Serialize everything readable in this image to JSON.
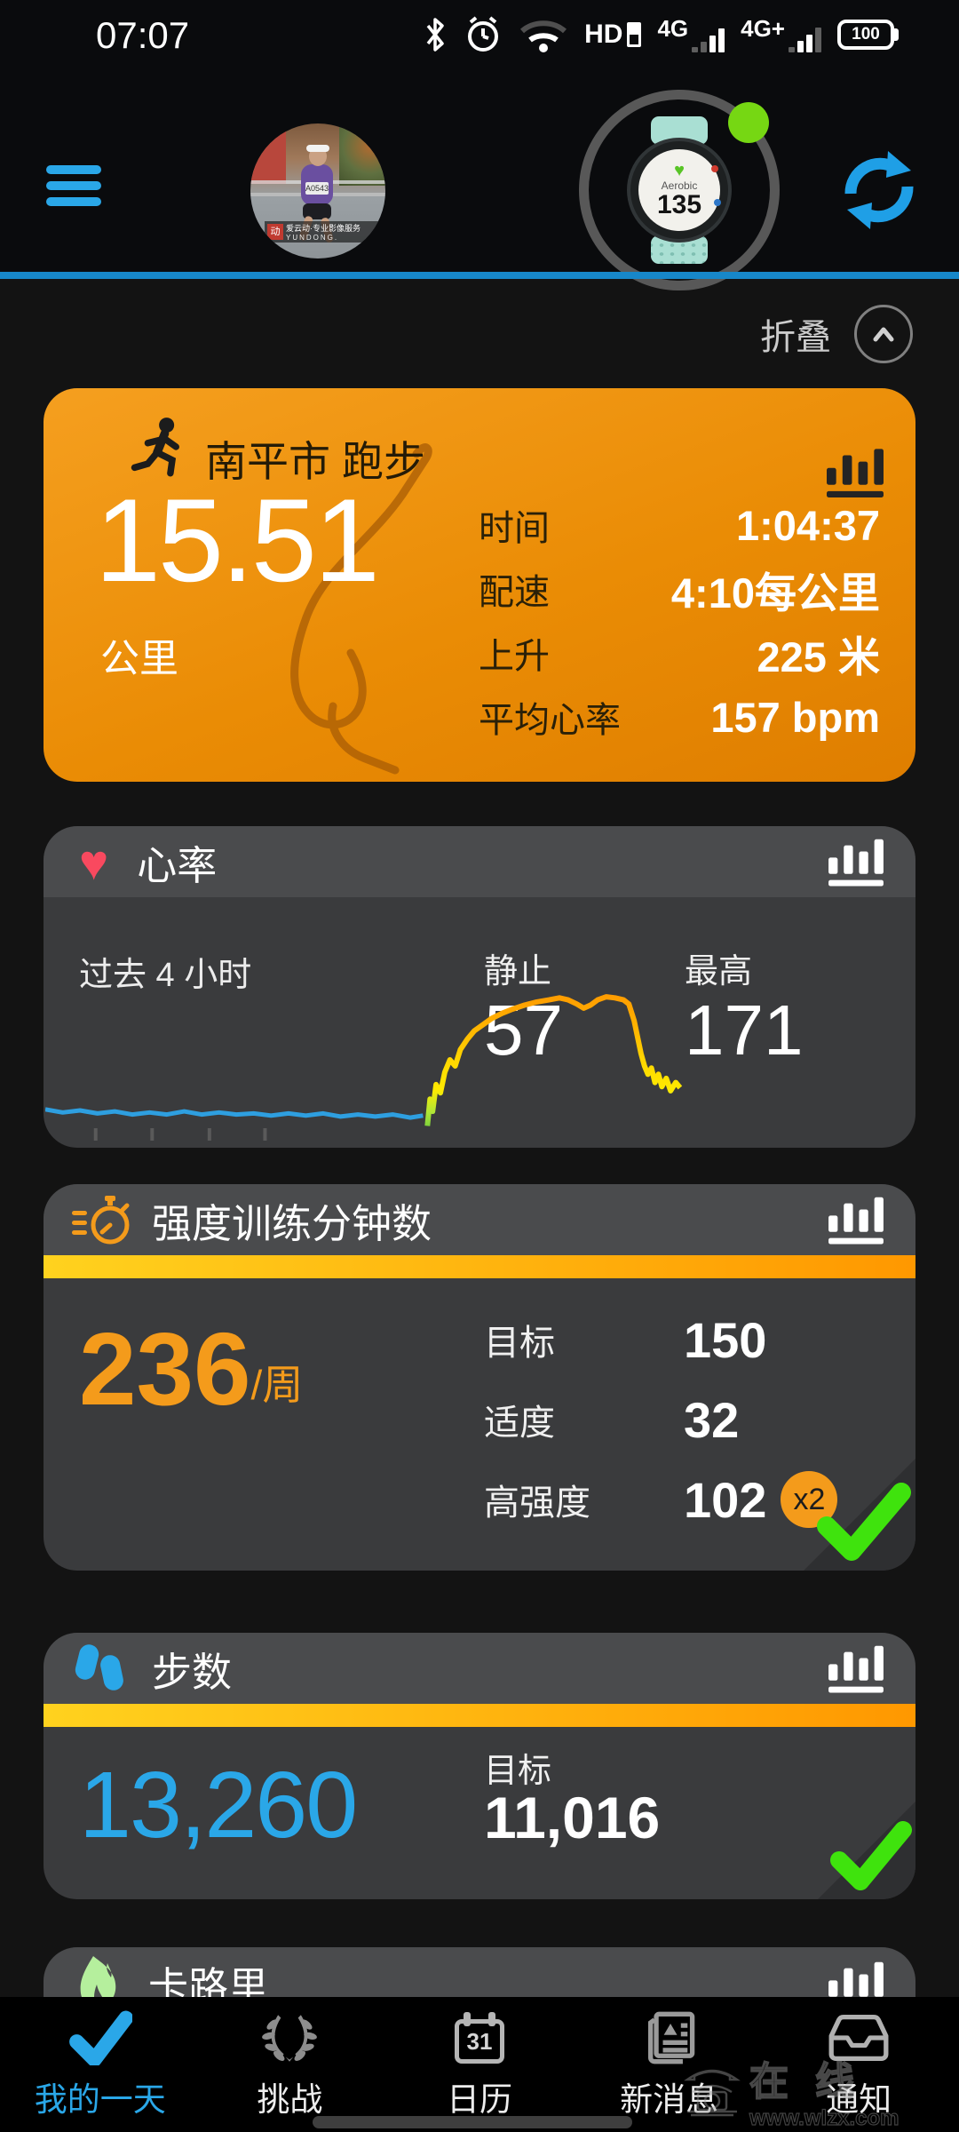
{
  "status_bar": {
    "time": "07:07",
    "battery_level": "100",
    "hd_label": "HD",
    "net1_label": "4G",
    "net2_label": "4G+"
  },
  "header": {
    "avatar_bib": "A0543",
    "avatar_watermark_brand": "爱云动·专业影像服务",
    "avatar_watermark_sub": "YUNDONG.",
    "watch_mode": "Aerobic",
    "watch_hr": "135"
  },
  "collapse": {
    "label": "折叠"
  },
  "cards": {
    "activity": {
      "title": "南平市 跑步",
      "distance": "15.51",
      "distance_unit": "公里",
      "stats": [
        {
          "label": "时间",
          "value": "1:04:37"
        },
        {
          "label": "配速",
          "value": "4:10每公里"
        },
        {
          "label": "上升",
          "value": "225 米"
        },
        {
          "label": "平均心率",
          "value": "157 bpm"
        }
      ]
    },
    "heart_rate": {
      "title": "心率",
      "period": "过去 4 小时",
      "resting_label": "静止",
      "resting_value": "57",
      "max_label": "最高",
      "max_value": "171",
      "chart": {
        "type": "line",
        "x_hours": 4,
        "y_range": [
          30,
          190
        ],
        "tick_positions": [
          0.058,
          0.123,
          0.189,
          0.253
        ],
        "colors": {
          "rest": "#2e9fe0",
          "zone_low": "#6ecb3c",
          "zone_mid": "#ffd600",
          "zone_high": "#ff8f00"
        },
        "rest_series": [
          [
            0,
            62
          ],
          [
            0.02,
            59
          ],
          [
            0.04,
            61
          ],
          [
            0.06,
            58
          ],
          [
            0.08,
            60
          ],
          [
            0.1,
            57
          ],
          [
            0.12,
            59
          ],
          [
            0.14,
            57
          ],
          [
            0.16,
            60
          ],
          [
            0.18,
            57
          ],
          [
            0.2,
            59
          ],
          [
            0.22,
            57
          ],
          [
            0.24,
            58
          ],
          [
            0.26,
            56
          ],
          [
            0.28,
            58
          ],
          [
            0.3,
            56
          ],
          [
            0.32,
            58
          ],
          [
            0.34,
            55
          ],
          [
            0.36,
            57
          ],
          [
            0.38,
            55
          ],
          [
            0.4,
            57
          ],
          [
            0.42,
            54
          ],
          [
            0.435,
            56
          ]
        ],
        "active_series": [
          [
            0.44,
            46
          ],
          [
            0.443,
            72
          ],
          [
            0.446,
            60
          ],
          [
            0.45,
            86
          ],
          [
            0.455,
            78
          ],
          [
            0.46,
            98
          ],
          [
            0.466,
            110
          ],
          [
            0.472,
            104
          ],
          [
            0.478,
            120
          ],
          [
            0.486,
            130
          ],
          [
            0.494,
            138
          ],
          [
            0.504,
            144
          ],
          [
            0.514,
            150
          ],
          [
            0.526,
            155
          ],
          [
            0.538,
            159
          ],
          [
            0.552,
            163
          ],
          [
            0.566,
            166
          ],
          [
            0.58,
            168
          ],
          [
            0.592,
            170
          ],
          [
            0.602,
            168
          ],
          [
            0.612,
            164
          ],
          [
            0.62,
            160
          ],
          [
            0.628,
            163
          ],
          [
            0.636,
            168
          ],
          [
            0.646,
            171
          ],
          [
            0.656,
            170
          ],
          [
            0.666,
            168
          ],
          [
            0.672,
            164
          ],
          [
            0.678,
            148
          ],
          [
            0.682,
            132
          ],
          [
            0.686,
            116
          ],
          [
            0.69,
            104
          ],
          [
            0.694,
            96
          ],
          [
            0.698,
            102
          ],
          [
            0.702,
            88
          ],
          [
            0.706,
            96
          ],
          [
            0.71,
            84
          ],
          [
            0.715,
            92
          ],
          [
            0.72,
            80
          ],
          [
            0.726,
            88
          ],
          [
            0.731,
            83
          ]
        ]
      }
    },
    "intensity": {
      "title": "强度训练分钟数",
      "value": "236",
      "unit": "/周",
      "rows": [
        {
          "label": "目标",
          "value": "150",
          "badge": ""
        },
        {
          "label": "适度",
          "value": "32",
          "badge": ""
        },
        {
          "label": "高强度",
          "value": "102",
          "badge": "x2"
        }
      ]
    },
    "steps": {
      "title": "步数",
      "value": "13,260",
      "goal_label": "目标",
      "goal_value": "11,016"
    },
    "calories": {
      "title": "卡路里"
    }
  },
  "nav": {
    "items": [
      {
        "label": "我的一天",
        "active": true
      },
      {
        "label": "挑战",
        "active": false
      },
      {
        "label": "日历",
        "active": false,
        "day": "31"
      },
      {
        "label": "新消息",
        "active": false
      },
      {
        "label": "通知",
        "active": false
      }
    ]
  },
  "watermark": {
    "text_cn": "在线",
    "text_url": "www.wlzx.com"
  },
  "colors": {
    "accent_blue": "#2aa7e8",
    "accent_orange": "#f49b1b",
    "success_green": "#3fe30d",
    "heart_pink": "#f9495f",
    "card_gray": "#3a3b3d"
  }
}
